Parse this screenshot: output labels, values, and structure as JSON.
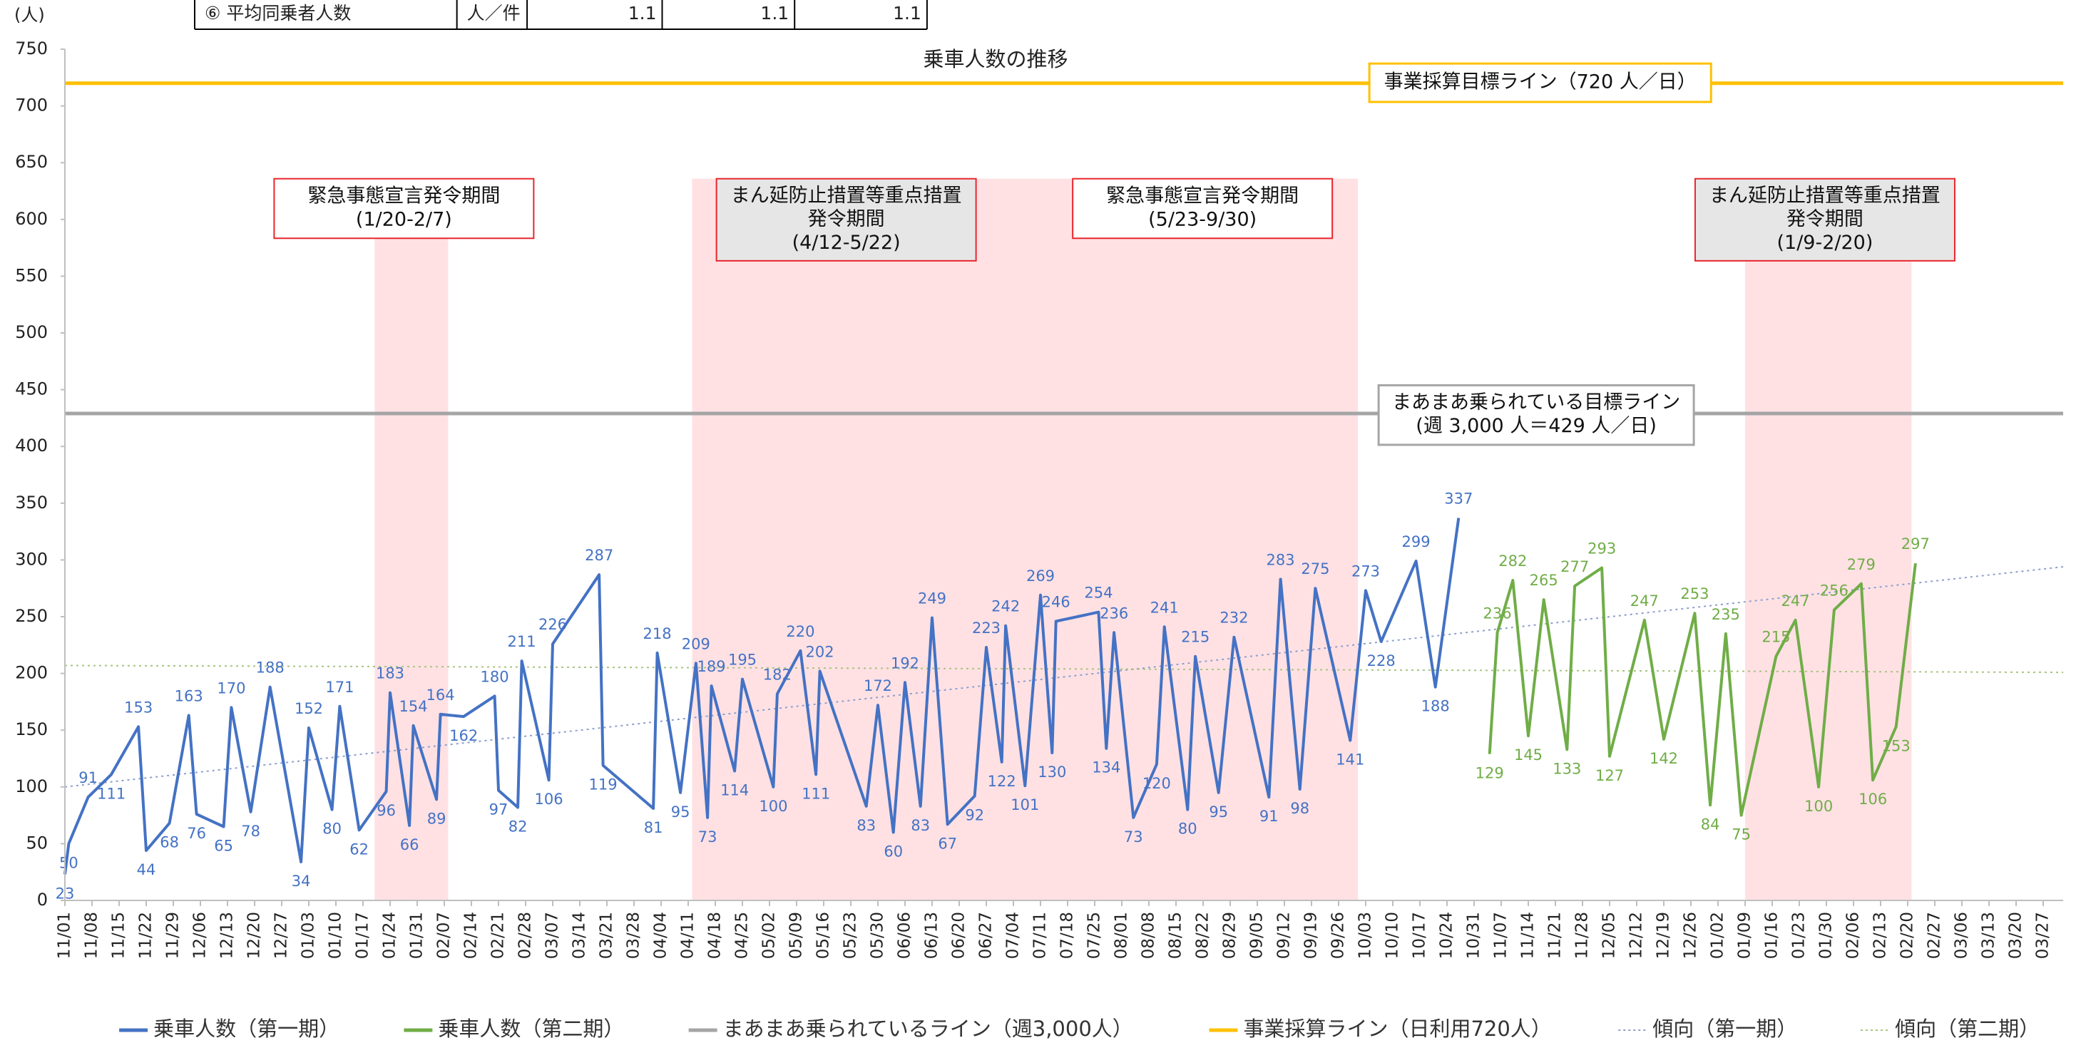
{
  "table": {
    "cells": [
      "⑥ 平均同乗者人数",
      "人／件",
      1.1,
      1.1,
      1.1
    ]
  },
  "chart_data": {
    "type": "line",
    "title": "乗車人数の推移",
    "y_unit": "(人)",
    "ylim": [
      0,
      750
    ],
    "yticks": [
      0,
      50,
      100,
      150,
      200,
      250,
      300,
      350,
      400,
      450,
      500,
      550,
      600,
      650,
      700,
      750
    ],
    "categories": [
      "11/01",
      "11/08",
      "11/15",
      "11/22",
      "11/29",
      "12/06",
      "12/13",
      "12/20",
      "12/27",
      "01/03",
      "01/10",
      "01/17",
      "01/24",
      "01/31",
      "02/07",
      "02/14",
      "02/21",
      "02/28",
      "03/07",
      "03/14",
      "03/21",
      "03/28",
      "04/04",
      "04/11",
      "04/18",
      "04/25",
      "05/02",
      "05/09",
      "05/16",
      "05/23",
      "05/30",
      "06/06",
      "06/13",
      "06/20",
      "06/27",
      "07/04",
      "07/11",
      "07/18",
      "07/25",
      "08/01",
      "08/08",
      "08/15",
      "08/22",
      "08/29",
      "09/05",
      "09/12",
      "09/19",
      "09/26",
      "10/03",
      "10/10",
      "10/17",
      "10/24",
      "10/31",
      "11/07",
      "11/14",
      "11/21",
      "11/28",
      "12/05",
      "12/12",
      "12/19",
      "12/26",
      "01/02",
      "01/09",
      "01/16",
      "01/23",
      "01/30",
      "02/06",
      "02/13",
      "02/20",
      "02/27",
      "03/06",
      "03/13",
      "03/20",
      "03/27"
    ],
    "series": [
      {
        "name": "乗車人数（第一期）",
        "color": "#4472c4",
        "x": [
          "11/01",
          "11/02",
          "11/07",
          "11/13",
          "11/20",
          "11/22",
          "11/28",
          "12/03",
          "12/05",
          "12/12",
          "12/14",
          "12/19",
          "12/24",
          "01/01",
          "01/03",
          "01/09",
          "01/11",
          "01/16",
          "01/23",
          "01/24",
          "01/29",
          "01/30",
          "02/05",
          "02/06",
          "02/12",
          "02/20",
          "02/21",
          "02/26",
          "02/27",
          "03/06",
          "03/07",
          "03/19",
          "03/20",
          "04/02",
          "04/03",
          "04/09",
          "04/13",
          "04/16",
          "04/17",
          "04/23",
          "04/25",
          "05/03",
          "05/04",
          "05/10",
          "05/14",
          "05/15",
          "05/27",
          "05/30",
          "06/03",
          "06/06",
          "06/10",
          "06/13",
          "06/17",
          "06/24",
          "06/27",
          "07/01",
          "07/02",
          "07/07",
          "07/11",
          "07/14",
          "07/15",
          "07/26",
          "07/28",
          "07/30",
          "08/04",
          "08/10",
          "08/12",
          "08/18",
          "08/20",
          "08/26",
          "08/30",
          "09/08",
          "09/11",
          "09/16",
          "09/20",
          "09/29",
          "10/03",
          "10/07",
          "10/16",
          "10/21",
          "10/27"
        ],
        "values": [
          23,
          50,
          91,
          111,
          153,
          44,
          68,
          163,
          76,
          65,
          170,
          78,
          188,
          34,
          152,
          80,
          171,
          62,
          96,
          183,
          66,
          154,
          89,
          164,
          162,
          180,
          97,
          82,
          211,
          106,
          226,
          287,
          119,
          81,
          218,
          95,
          209,
          73,
          189,
          114,
          195,
          100,
          182,
          220,
          111,
          202,
          83,
          172,
          60,
          192,
          83,
          249,
          67,
          92,
          223,
          122,
          242,
          101,
          269,
          130,
          246,
          254,
          134,
          236,
          73,
          120,
          241,
          80,
          215,
          95,
          232,
          91,
          283,
          98,
          275,
          141,
          273,
          228,
          299,
          188,
          337
        ]
      },
      {
        "name": "乗車人数（第二期）",
        "color": "#70ad47",
        "x": [
          "11/04",
          "11/06",
          "11/10",
          "11/14",
          "11/18",
          "11/24",
          "11/26",
          "12/03",
          "12/05",
          "12/14",
          "12/19",
          "12/27",
          "12/31",
          "01/04",
          "01/08",
          "01/17",
          "01/22",
          "01/28",
          "02/01",
          "02/08",
          "02/11",
          "02/17",
          "02/22"
        ],
        "values": [
          129,
          236,
          282,
          145,
          265,
          133,
          277,
          293,
          127,
          247,
          142,
          253,
          84,
          235,
          75,
          215,
          247,
          100,
          256,
          279,
          106,
          153,
          297
        ]
      }
    ],
    "reference_lines": [
      {
        "name": "まあまあ乗られているライン（週3,000人）",
        "color": "#a5a5a5",
        "value": 429,
        "label": [
          "まあまあ乗られている目標ライン",
          "(週 3,000 人＝429 人／日)"
        ]
      },
      {
        "name": "事業採算ライン（日利用720人）",
        "color": "#ffc000",
        "value": 720,
        "label": [
          "事業採算目標ライン（720 人／日）"
        ]
      }
    ],
    "trend_lines": [
      {
        "name": "傾向（第一期）",
        "color": "#8c9fcc",
        "values": [
          100,
          292
        ]
      },
      {
        "name": "傾向（第二期）",
        "color": "#a9c47f",
        "values": [
          207,
          201
        ]
      }
    ],
    "periods": [
      {
        "label": [
          "緊急事態宣言発令期間",
          "(1/20-2/7)"
        ]
      },
      {
        "label": [
          "まん延防止措置等重点措置",
          "発令期間",
          "(4/12-5/22)"
        ]
      },
      {
        "label": [
          "緊急事態宣言発令期間",
          "(5/23-9/30)"
        ]
      },
      {
        "label": [
          "まん延防止措置等重点措置",
          "発令期間",
          "(1/9-2/20)"
        ]
      }
    ]
  }
}
